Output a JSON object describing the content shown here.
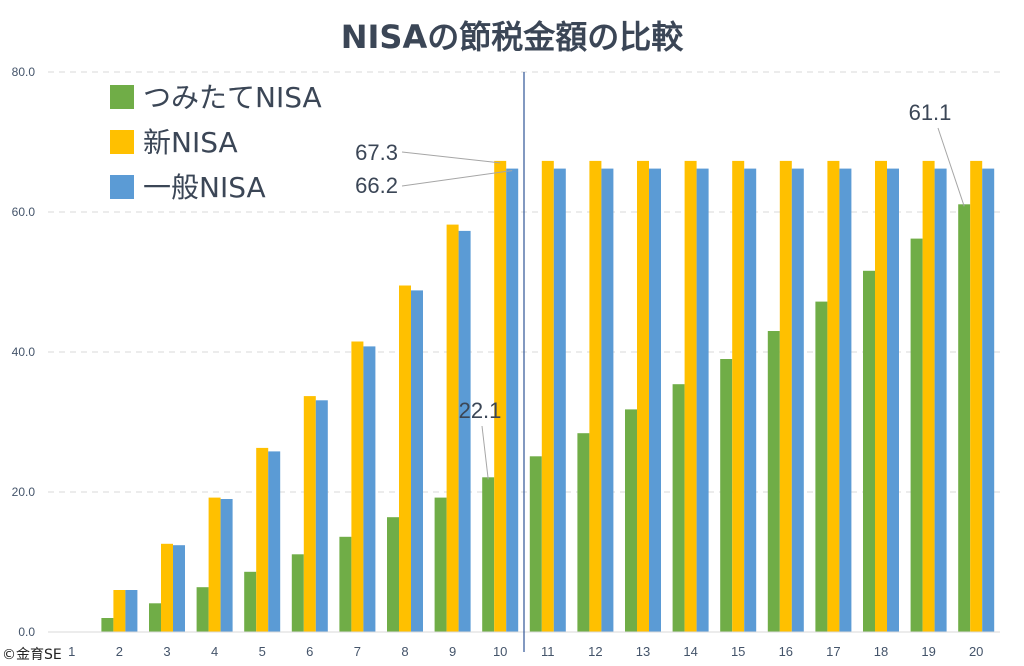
{
  "chart_data": {
    "type": "bar",
    "title": "NISAの節税金額の比較",
    "categories": [
      "1",
      "2",
      "3",
      "4",
      "5",
      "6",
      "7",
      "8",
      "9",
      "10",
      "11",
      "12",
      "13",
      "14",
      "15",
      "16",
      "17",
      "18",
      "19",
      "20"
    ],
    "y_ticks": [
      "0.0",
      "20.0",
      "40.0",
      "60.0",
      "80.0"
    ],
    "ylim": [
      0,
      80
    ],
    "grid": true,
    "legend_position": "top-left",
    "series": [
      {
        "name": "つみたてNISA",
        "color": "#70ad47",
        "values": [
          0,
          2.0,
          4.1,
          6.4,
          8.6,
          11.1,
          13.6,
          16.4,
          19.2,
          22.1,
          25.1,
          28.4,
          31.8,
          35.4,
          39.0,
          43.0,
          47.2,
          51.6,
          56.2,
          61.1
        ]
      },
      {
        "name": "新NISA",
        "color": "#ffc000",
        "values": [
          0,
          6.0,
          12.6,
          19.2,
          26.3,
          33.7,
          41.5,
          49.5,
          58.2,
          67.3,
          67.3,
          67.3,
          67.3,
          67.3,
          67.3,
          67.3,
          67.3,
          67.3,
          67.3,
          67.3
        ]
      },
      {
        "name": "一般NISA",
        "color": "#5b9bd5",
        "values": [
          0,
          6.0,
          12.4,
          19.0,
          25.8,
          33.1,
          40.8,
          48.8,
          57.3,
          66.2,
          66.2,
          66.2,
          66.2,
          66.2,
          66.2,
          66.2,
          66.2,
          66.2,
          66.2,
          66.2
        ]
      }
    ],
    "annotations": [
      {
        "text": "67.3",
        "series": 1,
        "category": "10"
      },
      {
        "text": "66.2",
        "series": 2,
        "category": "10"
      },
      {
        "text": "22.1",
        "series": 0,
        "category": "10"
      },
      {
        "text": "61.1",
        "series": 0,
        "category": "20"
      }
    ],
    "divider_after_category": "10"
  },
  "footer": {
    "copyright": "©金育SE"
  }
}
